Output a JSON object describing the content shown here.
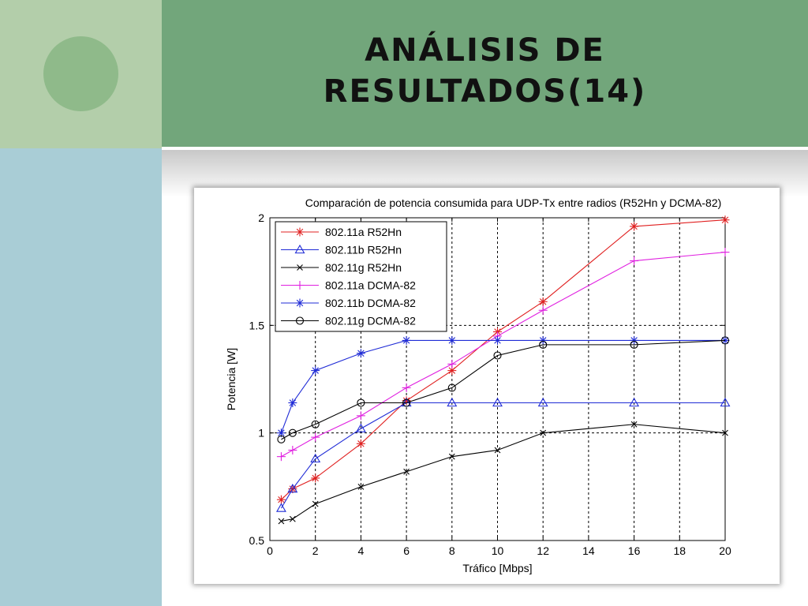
{
  "slide": {
    "title_line1": "ANÁLISIS DE",
    "title_line2": "RESULTADOS(14)"
  },
  "chart_data": {
    "type": "line",
    "title": "Comparación de potencia consumida para UDP-Tx entre radios (R52Hn y DCMA-82)",
    "xlabel": "Tráfico [Mbps]",
    "ylabel": "Potencia [W]",
    "xlim": [
      0,
      20
    ],
    "ylim": [
      0.5,
      2
    ],
    "xticks": [
      "0",
      "2",
      "4",
      "6",
      "8",
      "10",
      "12",
      "14",
      "16",
      "18",
      "20"
    ],
    "yticks": [
      "0.5",
      "1",
      "1.5",
      "2"
    ],
    "grid": true,
    "legend_position": "top-left",
    "series": [
      {
        "name": "802.11a R52Hn",
        "color": "#e02020",
        "marker": "star",
        "x": [
          0.5,
          1,
          2,
          4,
          6,
          8,
          10,
          12,
          16,
          20
        ],
        "y": [
          0.69,
          0.74,
          0.79,
          0.95,
          1.15,
          1.29,
          1.47,
          1.61,
          1.96,
          1.99
        ]
      },
      {
        "name": "802.11b R52Hn",
        "color": "#1f2bd6",
        "marker": "triangle",
        "x": [
          0.5,
          1,
          2,
          4,
          6,
          8,
          10,
          12,
          16,
          20
        ],
        "y": [
          0.65,
          0.74,
          0.88,
          1.02,
          1.14,
          1.14,
          1.14,
          1.14,
          1.14,
          1.14
        ]
      },
      {
        "name": "802.11g R52Hn",
        "color": "#000000",
        "marker": "x",
        "x": [
          0.5,
          1,
          2,
          4,
          6,
          8,
          10,
          12,
          16,
          20
        ],
        "y": [
          0.59,
          0.6,
          0.67,
          0.75,
          0.82,
          0.89,
          0.92,
          1.0,
          1.04,
          1.0
        ]
      },
      {
        "name": "802.11a DCMA-82",
        "color": "#e020e0",
        "marker": "plus",
        "x": [
          0.5,
          1,
          2,
          4,
          6,
          8,
          10,
          12,
          16,
          20
        ],
        "y": [
          0.89,
          0.92,
          0.98,
          1.08,
          1.21,
          1.32,
          1.45,
          1.57,
          1.8,
          1.84
        ]
      },
      {
        "name": "802.11b DCMA-82",
        "color": "#1f2bd6",
        "marker": "asterisk",
        "x": [
          0.5,
          1,
          2,
          4,
          6,
          8,
          10,
          12,
          16,
          20
        ],
        "y": [
          1.0,
          1.14,
          1.29,
          1.37,
          1.43,
          1.43,
          1.43,
          1.43,
          1.43,
          1.43
        ]
      },
      {
        "name": "802.11g DCMA-82",
        "color": "#000000",
        "marker": "circle",
        "x": [
          0.5,
          1,
          2,
          4,
          6,
          8,
          10,
          12,
          16,
          20
        ],
        "y": [
          0.97,
          1.0,
          1.04,
          1.14,
          1.14,
          1.21,
          1.36,
          1.41,
          1.41,
          1.43
        ]
      }
    ]
  }
}
